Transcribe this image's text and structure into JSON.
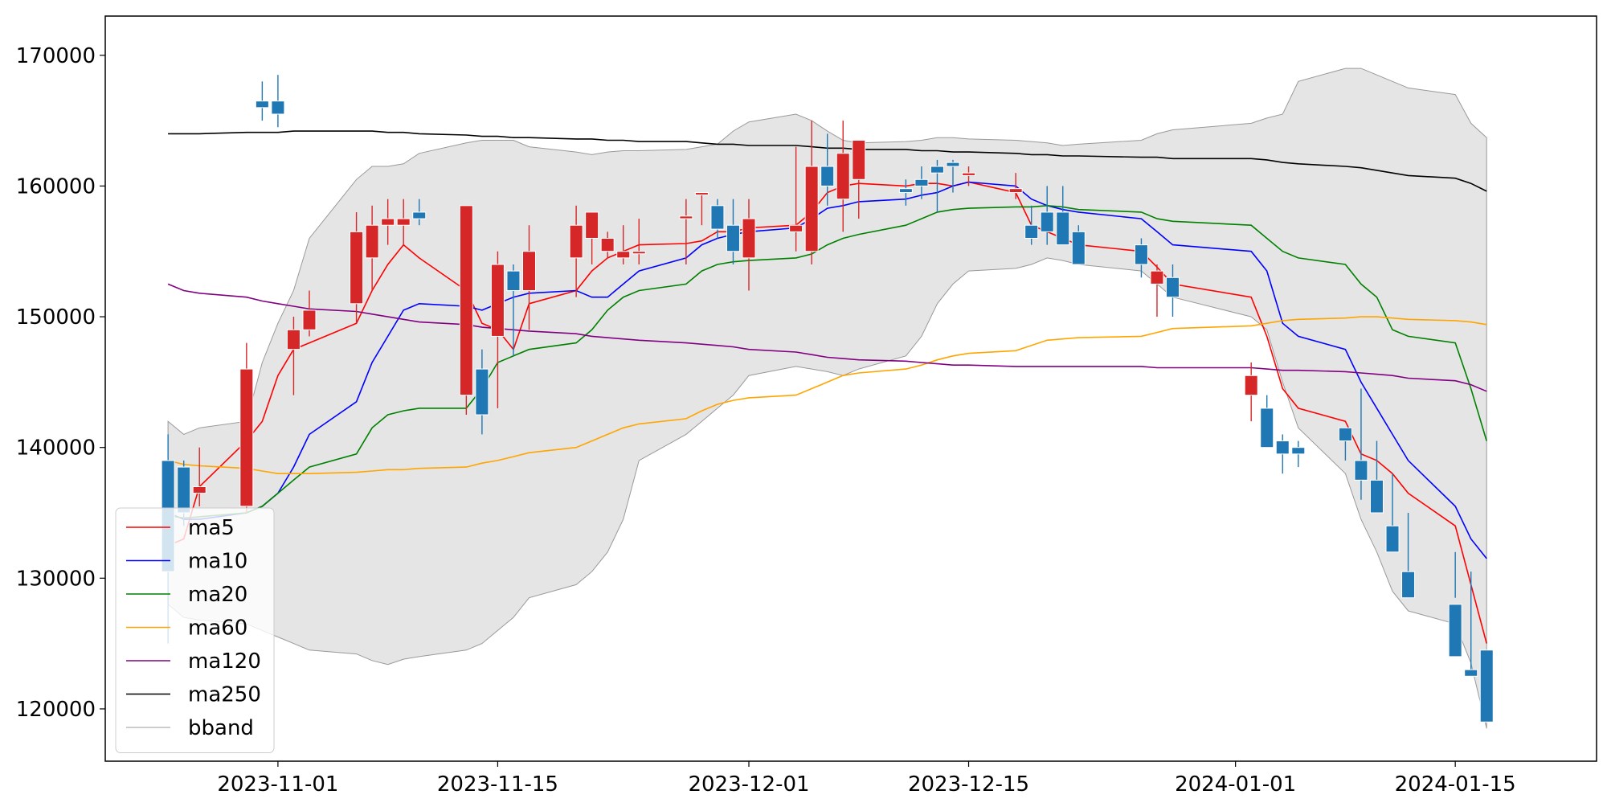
{
  "chart_data": {
    "type": "candlestick",
    "title": "",
    "xlabel": "",
    "ylabel": "",
    "ylim": [
      116000,
      173000
    ],
    "xlim": [
      "2023-10-21",
      "2024-01-24"
    ],
    "grid": false,
    "legend_position": "lower-left",
    "x_ticks": [
      {
        "date": "2023-11-01",
        "label": "2023-11-01"
      },
      {
        "date": "2023-11-15",
        "label": "2023-11-15"
      },
      {
        "date": "2023-12-01",
        "label": "2023-12-01"
      },
      {
        "date": "2023-12-15",
        "label": "2023-12-15"
      },
      {
        "date": "2024-01-01",
        "label": "2024-01-01"
      },
      {
        "date": "2024-01-15",
        "label": "2024-01-15"
      }
    ],
    "y_ticks": [
      {
        "value": 120000,
        "label": "120000"
      },
      {
        "value": 130000,
        "label": "130000"
      },
      {
        "value": 140000,
        "label": "140000"
      },
      {
        "value": 150000,
        "label": "150000"
      },
      {
        "value": 160000,
        "label": "160000"
      },
      {
        "value": 170000,
        "label": "170000"
      }
    ],
    "dates": [
      "2023-10-25",
      "2023-10-26",
      "2023-10-27",
      "2023-10-30",
      "2023-10-31",
      "2023-11-01",
      "2023-11-02",
      "2023-11-03",
      "2023-11-06",
      "2023-11-07",
      "2023-11-08",
      "2023-11-09",
      "2023-11-10",
      "2023-11-13",
      "2023-11-14",
      "2023-11-15",
      "2023-11-16",
      "2023-11-17",
      "2023-11-20",
      "2023-11-21",
      "2023-11-22",
      "2023-11-23",
      "2023-11-24",
      "2023-11-27",
      "2023-11-28",
      "2023-11-29",
      "2023-11-30",
      "2023-12-01",
      "2023-12-04",
      "2023-12-05",
      "2023-12-06",
      "2023-12-07",
      "2023-12-08",
      "2023-12-11",
      "2023-12-12",
      "2023-12-13",
      "2023-12-14",
      "2023-12-15",
      "2023-12-18",
      "2023-12-19",
      "2023-12-20",
      "2023-12-21",
      "2023-12-22",
      "2023-12-26",
      "2023-12-27",
      "2023-12-28",
      "2024-01-02",
      "2024-01-03",
      "2024-01-04",
      "2024-01-05",
      "2024-01-08",
      "2024-01-09",
      "2024-01-10",
      "2024-01-11",
      "2024-01-12",
      "2024-01-15",
      "2024-01-16",
      "2024-01-17"
    ],
    "candles": {
      "colors": {
        "up": "#d62728",
        "down": "#1f77b4"
      },
      "open": [
        139000,
        138500,
        136500,
        135500,
        166500,
        166500,
        147500,
        149000,
        151000,
        154500,
        157000,
        157000,
        158000,
        144000,
        146000,
        148500,
        153500,
        152000,
        154500,
        156000,
        155000,
        154500,
        155000,
        157500,
        159500,
        158500,
        157000,
        154500,
        156500,
        155000,
        161500,
        159000,
        160500,
        159800,
        160500,
        161500,
        161800,
        160800,
        159500,
        157000,
        158000,
        158000,
        156500,
        155500,
        152500,
        153000,
        144000,
        143000,
        140500,
        140000,
        141500,
        139000,
        137500,
        134000,
        130500,
        128000,
        123000,
        124500
      ],
      "high": [
        141000,
        139000,
        140000,
        148000,
        168000,
        168500,
        150000,
        152000,
        158000,
        158500,
        159000,
        159000,
        159000,
        145500,
        147500,
        155000,
        154000,
        157000,
        158500,
        157500,
        156500,
        157000,
        157500,
        159000,
        159500,
        159000,
        159000,
        159000,
        163000,
        165000,
        164000,
        165000,
        163500,
        160500,
        161500,
        162000,
        162000,
        161500,
        161000,
        158500,
        160000,
        160000,
        157000,
        156000,
        154000,
        154000,
        146500,
        144000,
        141000,
        140500,
        141500,
        144500,
        140500,
        138000,
        135000,
        132000,
        130500,
        124500
      ],
      "low": [
        125000,
        134000,
        135500,
        135000,
        165000,
        164500,
        144000,
        148500,
        149500,
        152000,
        155500,
        155500,
        157000,
        142500,
        141000,
        143000,
        147000,
        149000,
        151500,
        154000,
        154500,
        154000,
        154000,
        154000,
        157000,
        156000,
        154000,
        152000,
        155000,
        154000,
        158500,
        156500,
        157500,
        158500,
        159000,
        158000,
        159500,
        160000,
        159000,
        155500,
        155500,
        156500,
        154000,
        153000,
        150000,
        150000,
        142000,
        140500,
        138000,
        138500,
        139000,
        136000,
        136000,
        132500,
        130500,
        128500,
        123000,
        121500
      ],
      "close": [
        130500,
        135000,
        137000,
        146000,
        166000,
        165500,
        149000,
        150500,
        156500,
        157000,
        157500,
        157500,
        157500,
        158500,
        142500,
        154000,
        152000,
        155000,
        157000,
        158000,
        156000,
        155000,
        155000,
        157700,
        159500,
        156700,
        155000,
        157500,
        157000,
        161500,
        160000,
        162500,
        163500,
        159500,
        160000,
        161000,
        161500,
        161000,
        159800,
        156000,
        156500,
        155500,
        154000,
        154000,
        153500,
        151500,
        145500,
        140000,
        139500,
        139500,
        140500,
        137500,
        135000,
        132000,
        128500,
        124000,
        122500,
        119000
      ]
    },
    "series": [
      {
        "name": "ma5",
        "color": "#ff0000",
        "values": [
          132500,
          133000,
          137000,
          140500,
          142000,
          145500,
          147500,
          148000,
          149500,
          152000,
          154000,
          155500,
          154500,
          152000,
          149500,
          149000,
          147500,
          151000,
          152000,
          153500,
          154500,
          155000,
          155500,
          155600,
          155800,
          156500,
          156500,
          156800,
          157000,
          158000,
          159500,
          160000,
          160200,
          160000,
          160200,
          160200,
          160000,
          160300,
          159500,
          157000,
          156500,
          156000,
          155500,
          155000,
          153800,
          152500,
          151500,
          148500,
          144500,
          143000,
          142000,
          139500,
          139000,
          138000,
          136500,
          134000,
          129500,
          125000
        ]
      },
      {
        "name": "ma10",
        "color": "#0000ff",
        "values": [
          135000,
          134500,
          134500,
          135000,
          135500,
          136500,
          138500,
          141000,
          143500,
          146500,
          148500,
          150500,
          151000,
          150800,
          150500,
          151000,
          151500,
          151800,
          152000,
          151500,
          151500,
          152500,
          153500,
          154500,
          155500,
          156000,
          156300,
          156500,
          156800,
          157500,
          158300,
          158500,
          158800,
          159000,
          159300,
          159500,
          160000,
          160300,
          160000,
          159000,
          158500,
          158200,
          158000,
          157500,
          156500,
          155500,
          155000,
          153500,
          149500,
          148500,
          147500,
          145000,
          143000,
          141000,
          139000,
          135500,
          133000,
          131500
        ]
      },
      {
        "name": "ma20",
        "color": "#008000",
        "values": [
          134800,
          134600,
          134700,
          135000,
          135500,
          136500,
          137500,
          138500,
          139500,
          141500,
          142500,
          142800,
          143000,
          143000,
          144500,
          146500,
          147000,
          147500,
          148000,
          149000,
          150500,
          151500,
          152000,
          152500,
          153500,
          154000,
          154200,
          154300,
          154500,
          154800,
          155500,
          156000,
          156300,
          157000,
          157500,
          158000,
          158200,
          158300,
          158400,
          158400,
          158500,
          158400,
          158200,
          158000,
          157500,
          157300,
          157000,
          156000,
          155000,
          154500,
          154000,
          152500,
          151500,
          149000,
          148500,
          148000,
          144500,
          140500
        ]
      },
      {
        "name": "ma60",
        "color": "#ffa500",
        "values": [
          139000,
          138700,
          138600,
          138400,
          138200,
          138000,
          138000,
          138000,
          138100,
          138200,
          138300,
          138300,
          138400,
          138500,
          138800,
          139000,
          139300,
          139600,
          140000,
          140500,
          141000,
          141500,
          141800,
          142200,
          142800,
          143300,
          143600,
          143800,
          144000,
          144500,
          145000,
          145500,
          145700,
          146000,
          146300,
          146700,
          147000,
          147200,
          147400,
          147800,
          148200,
          148300,
          148400,
          148500,
          148800,
          149100,
          149300,
          149500,
          149700,
          149800,
          149900,
          150000,
          150000,
          149900,
          149800,
          149700,
          149600,
          149400
        ]
      },
      {
        "name": "ma120",
        "color": "#800080",
        "values": [
          152500,
          152000,
          151800,
          151500,
          151200,
          151000,
          150800,
          150600,
          150400,
          150200,
          150000,
          149800,
          149600,
          149400,
          149200,
          149100,
          149000,
          148900,
          148700,
          148500,
          148400,
          148300,
          148200,
          148000,
          147900,
          147800,
          147700,
          147500,
          147300,
          147100,
          146900,
          146800,
          146700,
          146600,
          146500,
          146400,
          146300,
          146300,
          146200,
          146200,
          146200,
          146200,
          146200,
          146200,
          146100,
          146100,
          146100,
          146000,
          145900,
          145900,
          145800,
          145700,
          145600,
          145500,
          145300,
          145100,
          144800,
          144300
        ]
      },
      {
        "name": "ma250",
        "color": "#000000",
        "values": [
          164000,
          164000,
          164000,
          164100,
          164100,
          164100,
          164200,
          164200,
          164200,
          164200,
          164100,
          164100,
          164000,
          163900,
          163800,
          163800,
          163700,
          163700,
          163600,
          163600,
          163500,
          163500,
          163400,
          163400,
          163300,
          163200,
          163200,
          163100,
          163100,
          163000,
          162900,
          162900,
          162800,
          162800,
          162700,
          162700,
          162600,
          162600,
          162500,
          162400,
          162400,
          162300,
          162300,
          162200,
          162200,
          162100,
          162100,
          162000,
          161800,
          161700,
          161500,
          161400,
          161200,
          161000,
          160800,
          160600,
          160200,
          159600
        ]
      }
    ],
    "bband": {
      "name": "bband",
      "fill_color": "#e5e5e5",
      "edge_color": "#999999",
      "upper": [
        142000,
        141000,
        141500,
        142000,
        146500,
        149500,
        152000,
        156000,
        160500,
        161500,
        161500,
        161700,
        162500,
        163300,
        163500,
        163500,
        163500,
        163000,
        162600,
        162400,
        162600,
        162700,
        162700,
        162800,
        163000,
        163200,
        164200,
        164900,
        165500,
        165000,
        164200,
        163500,
        163300,
        163400,
        163500,
        163700,
        163700,
        163600,
        163500,
        163400,
        163300,
        163100,
        163200,
        163500,
        164000,
        164300,
        164800,
        165200,
        165500,
        168000,
        169000,
        169000,
        168500,
        168000,
        167500,
        167000,
        164800,
        163700
      ],
      "lower": [
        128000,
        127000,
        126800,
        126500,
        126000,
        125500,
        125000,
        124500,
        124200,
        123700,
        123400,
        123800,
        124000,
        124500,
        125000,
        126000,
        127000,
        128500,
        129500,
        130500,
        132000,
        134500,
        139000,
        141000,
        142000,
        143000,
        144000,
        145500,
        146200,
        146000,
        145800,
        145500,
        146000,
        147000,
        148500,
        151000,
        152500,
        153500,
        153700,
        154000,
        154500,
        154300,
        154000,
        153500,
        152500,
        151500,
        150000,
        149000,
        145000,
        141500,
        138000,
        134500,
        132000,
        129000,
        127500,
        126500,
        123500,
        118500
      ]
    }
  },
  "legend": {
    "entries": [
      {
        "label": "ma5",
        "color": "#ff0000"
      },
      {
        "label": "ma10",
        "color": "#0000ff"
      },
      {
        "label": "ma20",
        "color": "#008000"
      },
      {
        "label": "ma60",
        "color": "#ffa500"
      },
      {
        "label": "ma120",
        "color": "#800080"
      },
      {
        "label": "ma250",
        "color": "#000000"
      },
      {
        "label": "bband",
        "color": "#999999"
      }
    ]
  }
}
